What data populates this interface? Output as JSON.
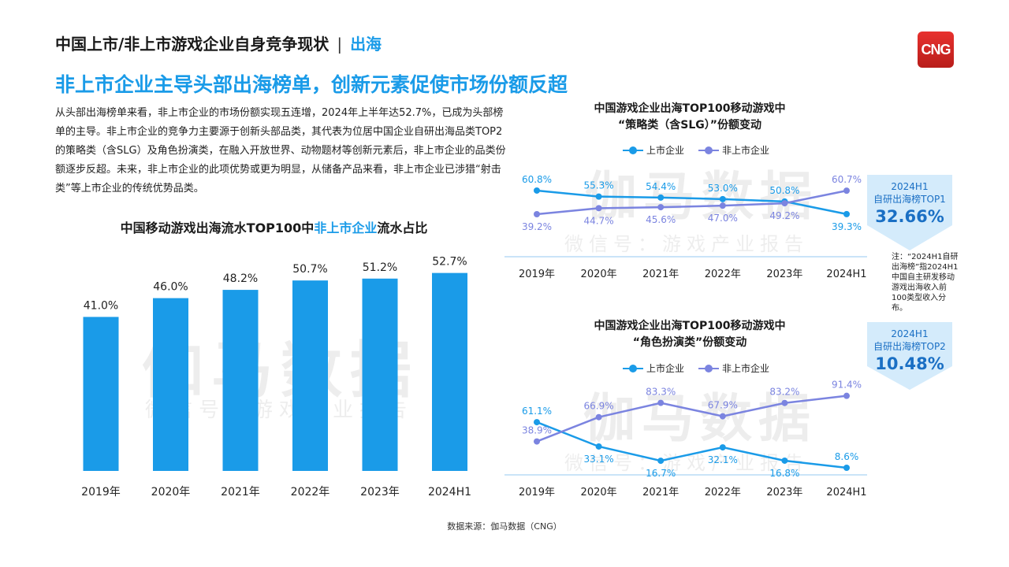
{
  "header": {
    "title": "中国上市/非上市游戏企业自身竞争现状",
    "separator": "|",
    "tag": "出海"
  },
  "logo": {
    "text": "CNG"
  },
  "headline": "非上市企业主导头部出海榜单，创新元素促使市场份额反超",
  "body_text": "从头部出海榜单来看，非上市企业的市场份额实现五连增，2024年上半年达52.7%，已成为头部榜单的主导。非上市企业的竞争力主要源于创新头部品类，其代表为位居中国企业自研出海品类TOP2的策略类（含SLG）及角色扮演类，在融入开放世界、动物题材等创新元素后，非上市企业的品类份额逐步反超。未来，非上市企业的此项优势或更为明显，从储备产品来看，非上市企业已涉猎“射击类”等上市企业的传统优势品类。",
  "watermark": {
    "main": "伽马数据",
    "sub": "微信号：游戏产业报告"
  },
  "colors": {
    "accent": "#1a9be8",
    "listed": "#1a9be8",
    "unlisted": "#7b84e0",
    "badge": "#d4ebfb"
  },
  "bar_chart": {
    "title_prefix": "中国移动游戏出海流水TOP100中",
    "title_highlight": "非上市企业",
    "title_suffix": "流水占比"
  },
  "line_chart_1": {
    "title_line1": "中国游戏企业出海TOP100移动游戏中",
    "title_line2": "“策略类（含SLG）”份额变动",
    "legend_listed": "上市企业",
    "legend_unlisted": "非上市企业"
  },
  "line_chart_2": {
    "title_line1": "中国游戏企业出海TOP100移动游戏中",
    "title_line2": "“角色扮演类”份额变动",
    "legend_listed": "上市企业",
    "legend_unlisted": "非上市企业"
  },
  "badge_1": {
    "line1": "2024H1",
    "line2": "自研出海榜TOP1",
    "value": "32.66%"
  },
  "badge_2": {
    "line1": "2024H1",
    "line2": "自研出海榜TOP2",
    "value": "10.48%"
  },
  "note": "注：“2024H1自研出海榜”指2024H1中国自主研发移动游戏出海收入前100类型收入分布。",
  "source": "数据来源：伽马数据（CNG）",
  "chart_data": [
    {
      "type": "bar",
      "title": "中国移动游戏出海流水TOP100中非上市企业流水占比",
      "categories": [
        "2019年",
        "2020年",
        "2021年",
        "2022年",
        "2023年",
        "2024H1"
      ],
      "values": [
        41.0,
        46.0,
        48.2,
        50.7,
        51.2,
        52.7
      ],
      "value_labels": [
        "41.0%",
        "46.0%",
        "48.2%",
        "50.7%",
        "51.2%",
        "52.7%"
      ],
      "unit": "%"
    },
    {
      "type": "line",
      "title": "中国游戏企业出海TOP100移动游戏中“策略类（含SLG）”份额变动",
      "categories": [
        "2019年",
        "2020年",
        "2021年",
        "2022年",
        "2023年",
        "2024H1"
      ],
      "series": [
        {
          "name": "上市企业",
          "values": [
            60.8,
            55.3,
            54.4,
            53.0,
            50.8,
            39.3
          ],
          "labels": [
            "60.8%",
            "55.3%",
            "54.4%",
            "53.0%",
            "50.8%",
            "39.3%"
          ]
        },
        {
          "name": "非上市企业",
          "values": [
            39.2,
            44.7,
            45.6,
            47.0,
            49.2,
            60.7
          ],
          "labels": [
            "39.2%",
            "44.7%",
            "45.6%",
            "47.0%",
            "49.2%",
            "60.7%"
          ]
        }
      ],
      "legend": "top"
    },
    {
      "type": "line",
      "title": "中国游戏企业出海TOP100移动游戏中“角色扮演类”份额变动",
      "categories": [
        "2019年",
        "2020年",
        "2021年",
        "2022年",
        "2023年",
        "2024H1"
      ],
      "series": [
        {
          "name": "上市企业",
          "values": [
            61.1,
            33.1,
            16.7,
            32.1,
            16.8,
            8.6
          ],
          "labels": [
            "61.1%",
            "33.1%",
            "16.7%",
            "32.1%",
            "16.8%",
            "8.6%"
          ]
        },
        {
          "name": "非上市企业",
          "values": [
            38.9,
            66.9,
            83.3,
            67.9,
            83.2,
            91.4
          ],
          "labels": [
            "38.9%",
            "66.9%",
            "83.3%",
            "67.9%",
            "83.2%",
            "91.4%"
          ]
        }
      ],
      "legend": "top"
    }
  ]
}
